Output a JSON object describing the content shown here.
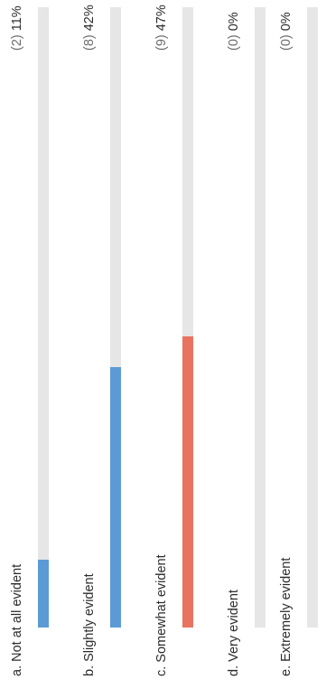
{
  "options": [
    {
      "label": "a. Not at all evident",
      "count_text": "(2)",
      "percent_text": "11%",
      "fraction": 0.11,
      "color": "#5b9bd5"
    },
    {
      "label": "b. Slightly evident",
      "count_text": "(8)",
      "percent_text": "42%",
      "fraction": 0.42,
      "color": "#5b9bd5"
    },
    {
      "label": "c. Somewhat evident",
      "count_text": "(9)",
      "percent_text": "47%",
      "fraction": 0.47,
      "color": "#e8735f"
    },
    {
      "label": "d. Very evident",
      "count_text": "(0)",
      "percent_text": "0%",
      "fraction": 0.0,
      "color": "#5b9bd5"
    },
    {
      "label": "e. Extremely evident",
      "count_text": "(0)",
      "percent_text": "0%",
      "fraction": 0.0,
      "color": "#5b9bd5"
    }
  ]
}
